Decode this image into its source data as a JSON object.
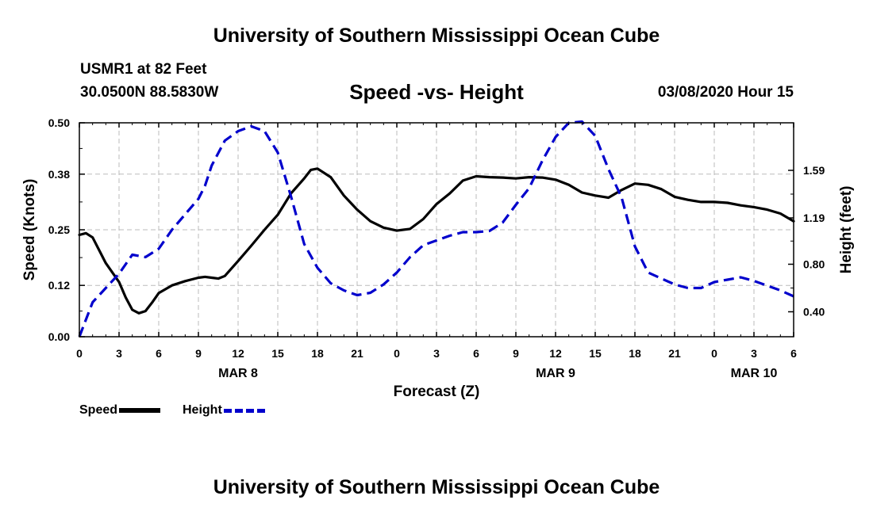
{
  "header": {
    "title": "University of Southern Mississippi Ocean Cube",
    "station": "USMR1 at 82 Feet",
    "coords": "30.0500N 88.5830W",
    "subtitle": "Speed -vs- Height",
    "datetime": "03/08/2020 Hour 15"
  },
  "footer": {
    "title": "University of Southern Mississippi Ocean Cube"
  },
  "legend": {
    "speed": "Speed",
    "height": "Height"
  },
  "colors": {
    "speed": "#000000",
    "height": "#0000cc",
    "grid": "#bbbbbb"
  },
  "chart_data": {
    "type": "line",
    "title": "Speed -vs- Height",
    "xlabel": "Forecast (Z)",
    "ylabel": "Speed (Knots)",
    "y2label": "Height (feet)",
    "xlim": [
      0,
      54
    ],
    "ylim": [
      0,
      0.5
    ],
    "y2lim": [
      0.19,
      1.99
    ],
    "grid": true,
    "x_ticks": [
      0,
      3,
      6,
      9,
      12,
      15,
      18,
      21,
      24,
      27,
      30,
      33,
      36,
      39,
      42,
      45,
      48,
      51,
      54
    ],
    "x_tick_labels": [
      "0",
      "3",
      "6",
      "9",
      "12",
      "15",
      "18",
      "21",
      "0",
      "3",
      "6",
      "9",
      "12",
      "15",
      "18",
      "21",
      "0",
      "3",
      "6"
    ],
    "date_labels": [
      {
        "x": 12,
        "label": "MAR 8"
      },
      {
        "x": 36,
        "label": "MAR 9"
      },
      {
        "x": 51,
        "label": "MAR 10"
      }
    ],
    "y_ticks": [
      0.0,
      0.12,
      0.25,
      0.38,
      0.5
    ],
    "y_tick_labels": [
      "0.00",
      "0.12",
      "0.25",
      "0.38",
      "0.50"
    ],
    "y2_ticks": [
      0.4,
      0.8,
      1.19,
      1.59
    ],
    "y2_tick_labels": [
      "0.40",
      "0.80",
      "1.19",
      "1.59"
    ],
    "series": [
      {
        "name": "Speed",
        "axis": "left",
        "style": "solid",
        "x": [
          0,
          0.5,
          1,
          2,
          3,
          3.5,
          4,
          4.5,
          5,
          5.5,
          6,
          7,
          8,
          9,
          9.5,
          10,
          10.5,
          11,
          12,
          13,
          14,
          15,
          16,
          17,
          17.5,
          18,
          19,
          20,
          21,
          22,
          23,
          24,
          25,
          26,
          27,
          28,
          29,
          30,
          31,
          32,
          33,
          34,
          35,
          36,
          37,
          38,
          39,
          40,
          41,
          42,
          43,
          44,
          45,
          46,
          47,
          48,
          49,
          50,
          51,
          52,
          53,
          54
        ],
        "values": [
          0.238,
          0.242,
          0.232,
          0.172,
          0.128,
          0.092,
          0.063,
          0.055,
          0.06,
          0.08,
          0.102,
          0.12,
          0.13,
          0.138,
          0.14,
          0.138,
          0.136,
          0.142,
          0.177,
          0.213,
          0.25,
          0.285,
          0.335,
          0.37,
          0.39,
          0.393,
          0.373,
          0.33,
          0.297,
          0.27,
          0.255,
          0.248,
          0.252,
          0.275,
          0.31,
          0.335,
          0.365,
          0.375,
          0.373,
          0.372,
          0.37,
          0.373,
          0.372,
          0.367,
          0.355,
          0.337,
          0.33,
          0.325,
          0.343,
          0.358,
          0.355,
          0.345,
          0.327,
          0.32,
          0.315,
          0.315,
          0.313,
          0.307,
          0.303,
          0.297,
          0.288,
          0.27
        ]
      },
      {
        "name": "Height",
        "axis": "right",
        "style": "dashed",
        "x": [
          0,
          1,
          2,
          3,
          4,
          5,
          6,
          7,
          8,
          9,
          9.5,
          10,
          11,
          12,
          13,
          14,
          15,
          16,
          17,
          18,
          19,
          20,
          21,
          22,
          23,
          24,
          25,
          26,
          27,
          28,
          29,
          30,
          31,
          32,
          33,
          34,
          35,
          36,
          37,
          38,
          39,
          40,
          41,
          42,
          43,
          44,
          45,
          46,
          47,
          48,
          49,
          50,
          51,
          52,
          53,
          54
        ],
        "values": [
          0.19,
          0.48,
          0.6,
          0.72,
          0.88,
          0.86,
          0.93,
          1.09,
          1.22,
          1.35,
          1.46,
          1.63,
          1.84,
          1.92,
          1.96,
          1.92,
          1.74,
          1.37,
          0.97,
          0.77,
          0.64,
          0.58,
          0.54,
          0.56,
          0.63,
          0.73,
          0.86,
          0.96,
          1.0,
          1.04,
          1.07,
          1.07,
          1.08,
          1.15,
          1.3,
          1.44,
          1.67,
          1.87,
          1.99,
          2.0,
          1.88,
          1.6,
          1.36,
          0.95,
          0.73,
          0.68,
          0.63,
          0.6,
          0.6,
          0.65,
          0.67,
          0.69,
          0.66,
          0.62,
          0.58,
          0.53
        ]
      }
    ]
  }
}
